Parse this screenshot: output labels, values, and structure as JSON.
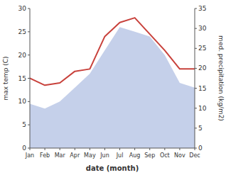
{
  "chart_data": {
    "type": "line",
    "categories": [
      "Jan",
      "Feb",
      "Mar",
      "Apr",
      "May",
      "Jun",
      "Jul",
      "Aug",
      "Sep",
      "Oct",
      "Nov",
      "Dec"
    ],
    "series": [
      {
        "type": "area",
        "color": "#c5d0ea",
        "values": [
          9.5,
          8.5,
          10.0,
          13.0,
          16.0,
          21.0,
          26.0,
          25.0,
          24.0,
          20.0,
          14.0,
          13.0
        ]
      },
      {
        "type": "line",
        "color": "#c8413b",
        "values": [
          15.0,
          13.5,
          14.0,
          16.5,
          17.0,
          24.0,
          27.0,
          28.0,
          24.5,
          21.0,
          17.0,
          17.0
        ]
      }
    ],
    "xlabel": "date (month)",
    "ylabel": "max temp (C)",
    "y2label": "med. precipitation (kg/m2)",
    "ylim": [
      0,
      30
    ],
    "yticks": [
      0,
      5,
      10,
      15,
      20,
      25,
      30
    ],
    "y2lim": [
      0,
      35
    ],
    "y2ticks": [
      0,
      5,
      10,
      15,
      20,
      25,
      30,
      35
    ],
    "grid": false
  }
}
